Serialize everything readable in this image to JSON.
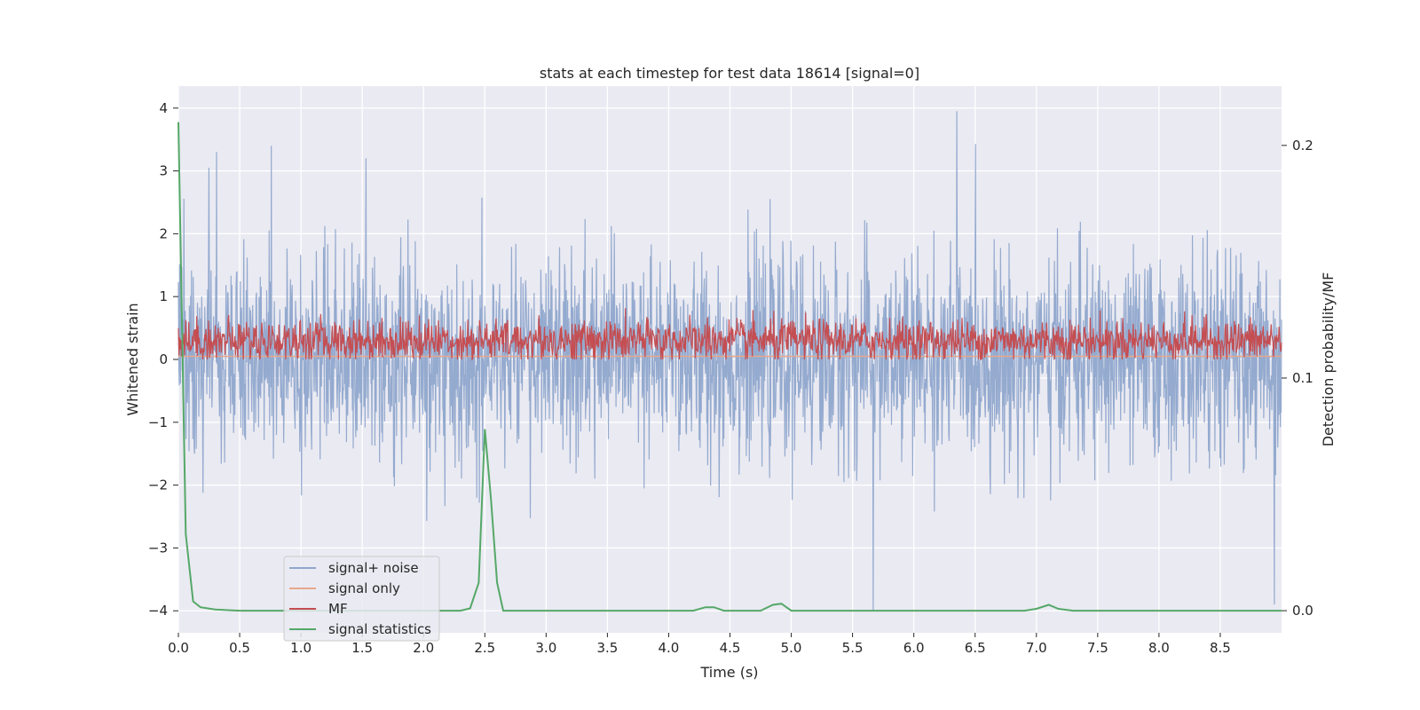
{
  "chart_data": {
    "type": "line",
    "title": "stats at each timestep for test data 18614 [signal=0]",
    "xlabel": "Time (s)",
    "ylabel": "Whitened strain",
    "ylabel_right": "Detection probability/MF",
    "xlim": [
      0.0,
      9.0
    ],
    "ylim": [
      -4.35,
      4.35
    ],
    "ylim_right": [
      -0.0095,
      0.2255
    ],
    "x_ticks": [
      0.0,
      0.5,
      1.0,
      1.5,
      2.0,
      2.5,
      3.0,
      3.5,
      4.0,
      4.5,
      5.0,
      5.5,
      6.0,
      6.5,
      7.0,
      7.5,
      8.0,
      8.5
    ],
    "x_tick_labels": [
      "0.0",
      "0.5",
      "1.0",
      "1.5",
      "2.0",
      "2.5",
      "3.0",
      "3.5",
      "4.0",
      "4.5",
      "5.0",
      "5.5",
      "6.0",
      "6.5",
      "7.0",
      "7.5",
      "8.0",
      "8.5"
    ],
    "y_ticks": [
      -4,
      -3,
      -2,
      -1,
      0,
      1,
      2,
      3,
      4
    ],
    "y_tick_labels": [
      "−4",
      "−3",
      "−2",
      "−1",
      "0",
      "1",
      "2",
      "3",
      "4"
    ],
    "y_ticks_right": [
      0.0,
      0.1,
      0.2
    ],
    "y_tick_labels_right": [
      "0.0",
      "0.1",
      "0.2"
    ],
    "grid": true,
    "legend_position": "lower-left",
    "series": [
      {
        "name": "signal+ noise",
        "axis": "left",
        "color": "#8fa6cc",
        "description": "dense noise around 0, amplitude roughly ±1.5, spikes up to ~4",
        "peaks": [
          {
            "x": 0.25,
            "y": 3.05
          },
          {
            "x": 0.31,
            "y": 3.3
          },
          {
            "x": 0.76,
            "y": 3.4
          },
          {
            "x": 1.53,
            "y": 3.2
          },
          {
            "x": 5.67,
            "y": -4.0
          },
          {
            "x": 6.35,
            "y": 3.95
          },
          {
            "x": 8.94,
            "y": -3.9
          }
        ]
      },
      {
        "name": "signal only",
        "axis": "left",
        "color": "#e8a78b",
        "points": [
          [
            0.0,
            0.05
          ],
          [
            9.0,
            0.05
          ]
        ]
      },
      {
        "name": "MF",
        "axis": "left",
        "color": "#c44e52",
        "description": "noisy band between 0 and about 0.9, centred near 0.3"
      },
      {
        "name": "signal statistics",
        "axis": "right",
        "color": "#55a868",
        "points": [
          [
            0.0,
            0.21
          ],
          [
            0.06,
            0.033
          ],
          [
            0.12,
            0.004
          ],
          [
            0.18,
            0.0015
          ],
          [
            0.3,
            0.0005
          ],
          [
            0.5,
            0.0
          ],
          [
            2.3,
            0.0
          ],
          [
            2.38,
            0.001
          ],
          [
            2.45,
            0.012
          ],
          [
            2.5,
            0.078
          ],
          [
            2.55,
            0.048
          ],
          [
            2.6,
            0.012
          ],
          [
            2.65,
            0.0
          ],
          [
            4.2,
            0.0
          ],
          [
            4.3,
            0.0015
          ],
          [
            4.37,
            0.0015
          ],
          [
            4.45,
            0.0
          ],
          [
            4.75,
            0.0
          ],
          [
            4.85,
            0.0025
          ],
          [
            4.92,
            0.003
          ],
          [
            5.0,
            0.0
          ],
          [
            6.9,
            0.0
          ],
          [
            7.0,
            0.0008
          ],
          [
            7.1,
            0.0025
          ],
          [
            7.18,
            0.0008
          ],
          [
            7.3,
            0.0
          ],
          [
            9.0,
            0.0
          ]
        ]
      }
    ]
  }
}
